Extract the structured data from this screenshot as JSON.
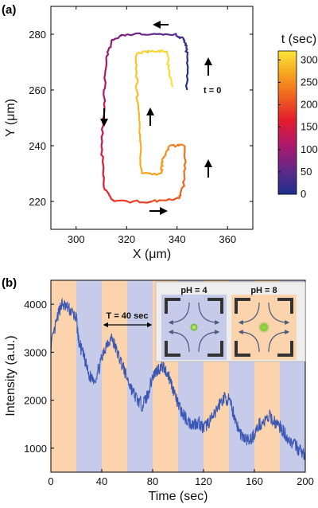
{
  "panel_a": {
    "label": "(a)",
    "annotation_t0": "t = 0",
    "colorbar_title": "t (sec)"
  },
  "panel_b": {
    "label": "(b)",
    "period_label": "T = 40 sec",
    "inset_ph_left": "pH = 4",
    "inset_ph_right": "pH = 8"
  },
  "colors": {
    "band_orange": "#fbd3ad",
    "band_blue": "#c5cbe8",
    "trace_blue": "#3a57b5",
    "arrow": "#000000"
  },
  "chart_data": [
    {
      "type": "scatter",
      "title": "",
      "xlabel": "X (μm)",
      "ylabel": "Y (μm)",
      "xlim": [
        290,
        370
      ],
      "ylim": [
        210,
        290
      ],
      "x_ticks": [
        300,
        320,
        340,
        360
      ],
      "y_ticks": [
        220,
        240,
        260,
        280
      ],
      "color_scale": {
        "label": "t (sec)",
        "range": [
          0,
          320
        ],
        "ticks": [
          0,
          50,
          100,
          150,
          200,
          250,
          300
        ]
      },
      "trajectory": [
        {
          "x": 344,
          "y": 260,
          "t": 0
        },
        {
          "x": 344,
          "y": 272,
          "t": 20
        },
        {
          "x": 343,
          "y": 278,
          "t": 30
        },
        {
          "x": 339,
          "y": 280,
          "t": 40
        },
        {
          "x": 330,
          "y": 280,
          "t": 55
        },
        {
          "x": 320,
          "y": 280,
          "t": 70
        },
        {
          "x": 314,
          "y": 278,
          "t": 85
        },
        {
          "x": 312,
          "y": 270,
          "t": 100
        },
        {
          "x": 311,
          "y": 255,
          "t": 120
        },
        {
          "x": 310,
          "y": 240,
          "t": 140
        },
        {
          "x": 311,
          "y": 225,
          "t": 165
        },
        {
          "x": 315,
          "y": 220,
          "t": 180
        },
        {
          "x": 330,
          "y": 220,
          "t": 200
        },
        {
          "x": 341,
          "y": 221,
          "t": 215
        },
        {
          "x": 343,
          "y": 228,
          "t": 225
        },
        {
          "x": 343,
          "y": 240,
          "t": 235
        },
        {
          "x": 337,
          "y": 240,
          "t": 245
        },
        {
          "x": 334,
          "y": 235,
          "t": 255
        },
        {
          "x": 334,
          "y": 230,
          "t": 262
        },
        {
          "x": 326,
          "y": 230,
          "t": 270
        },
        {
          "x": 325,
          "y": 245,
          "t": 280
        },
        {
          "x": 324,
          "y": 260,
          "t": 290
        },
        {
          "x": 324,
          "y": 273,
          "t": 300
        },
        {
          "x": 330,
          "y": 274,
          "t": 305
        },
        {
          "x": 336,
          "y": 274,
          "t": 310
        },
        {
          "x": 337,
          "y": 265,
          "t": 315
        },
        {
          "x": 338,
          "y": 261,
          "t": 320
        }
      ]
    },
    {
      "type": "line",
      "title": "",
      "xlabel": "Time (sec)",
      "ylabel": "Intensity (a.u.)",
      "xlim": [
        0,
        200
      ],
      "ylim": [
        500,
        4500
      ],
      "x_ticks": [
        0,
        40,
        80,
        120,
        160,
        200
      ],
      "y_ticks": [
        1000,
        2000,
        3000,
        4000
      ],
      "background_bands": {
        "period": 40,
        "first_half": "pH = 4",
        "second_half": "pH = 8"
      },
      "series": [
        {
          "x": [
            0,
            5,
            8,
            12,
            16,
            20,
            22,
            26,
            30,
            35,
            40,
            44,
            48,
            52,
            56,
            60,
            64,
            68,
            72,
            76,
            80,
            84,
            88,
            92,
            96,
            100,
            104,
            108,
            112,
            116,
            120,
            124,
            128,
            132,
            136,
            140,
            144,
            148,
            152,
            156,
            160,
            164,
            168,
            172,
            176,
            180,
            184,
            188,
            192,
            196,
            200
          ],
          "values": [
            3100,
            3700,
            4000,
            3950,
            3850,
            3700,
            3200,
            2900,
            2500,
            2450,
            2850,
            3200,
            3300,
            3000,
            2750,
            2450,
            2200,
            2000,
            1900,
            2100,
            2500,
            2650,
            2700,
            2550,
            2250,
            1900,
            1700,
            1550,
            1500,
            1550,
            1400,
            1550,
            1650,
            1900,
            2050,
            2000,
            1700,
            1350,
            1200,
            1150,
            1300,
            1500,
            1550,
            1650,
            1550,
            1450,
            1300,
            1150,
            1050,
            950,
            850
          ]
        }
      ]
    }
  ]
}
